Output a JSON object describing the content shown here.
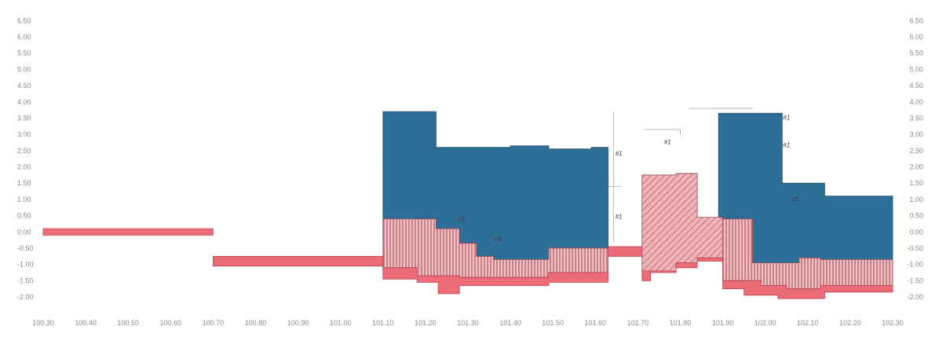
{
  "chart_data": {
    "type": "area",
    "title": "",
    "xlabel": "",
    "ylabel": "",
    "xlim": [
      100.3,
      102.3
    ],
    "ylim": [
      -2.25,
      6.5
    ],
    "grid": false,
    "legend": "none",
    "x_ticks": [
      "100.30",
      "100.40",
      "100.50",
      "100.60",
      "100.70",
      "100.80",
      "100.90",
      "101.00",
      "101.10",
      "101.20",
      "101.30",
      "101.40",
      "101.50",
      "101.60",
      "101.70",
      "101.80",
      "101.90",
      "102.00",
      "102.10",
      "102.20",
      "102.30"
    ],
    "y_ticks_left": [
      "6.50",
      "6.00",
      "5.50",
      "5.00",
      "4.50",
      "4.00",
      "3.50",
      "3.00",
      "2.50",
      "2.00",
      "1.50",
      "1.00",
      "0.50",
      "0.00",
      "-0.50",
      "-1.00",
      "-1.50",
      "-2.00"
    ],
    "y_ticks_right": [
      "6.50",
      "6.00",
      "5.50",
      "5.00",
      "4.50",
      "4.00",
      "3.50",
      "3.00",
      "2.50",
      "2.00",
      "1.50",
      "1.00",
      "0.50",
      "0.00",
      "-0.50",
      "-1.00",
      "-1.50",
      "-2.00"
    ],
    "series": [
      {
        "kind": "blue-fill",
        "polygons": [
          [
            [
              101.1,
              -0.25
            ],
            [
              101.1,
              3.7
            ],
            [
              101.225,
              3.7
            ],
            [
              101.225,
              2.6
            ],
            [
              101.4,
              2.6
            ],
            [
              101.4,
              2.65
            ],
            [
              101.49,
              2.65
            ],
            [
              101.49,
              2.55
            ],
            [
              101.59,
              2.55
            ],
            [
              101.59,
              2.6
            ],
            [
              101.63,
              2.6
            ],
            [
              101.63,
              -0.5
            ],
            [
              101.49,
              -0.5
            ],
            [
              101.49,
              -0.85
            ],
            [
              101.36,
              -0.85
            ],
            [
              101.36,
              -0.75
            ],
            [
              101.32,
              -0.75
            ],
            [
              101.32,
              -0.35
            ],
            [
              101.28,
              -0.35
            ],
            [
              101.28,
              0.1
            ],
            [
              101.225,
              0.1
            ],
            [
              101.225,
              0.4
            ],
            [
              101.18,
              0.4
            ],
            [
              101.18,
              -0.25
            ]
          ],
          [
            [
              101.89,
              3.65
            ],
            [
              102.04,
              3.65
            ],
            [
              102.04,
              1.5
            ],
            [
              102.14,
              1.5
            ],
            [
              102.14,
              1.1
            ],
            [
              102.3,
              1.1
            ],
            [
              102.3,
              -0.85
            ],
            [
              102.13,
              -0.85
            ],
            [
              102.13,
              -0.8
            ],
            [
              102.08,
              -0.8
            ],
            [
              102.08,
              -0.95
            ],
            [
              101.97,
              -0.95
            ],
            [
              101.97,
              0.4
            ],
            [
              101.9,
              0.4
            ],
            [
              101.9,
              0.0
            ],
            [
              101.89,
              0.0
            ]
          ]
        ]
      },
      {
        "kind": "vertical-hatch",
        "polygons": [
          [
            [
              101.1,
              0.4
            ],
            [
              101.225,
              0.4
            ],
            [
              101.225,
              0.1
            ],
            [
              101.28,
              0.1
            ],
            [
              101.28,
              -0.35
            ],
            [
              101.32,
              -0.35
            ],
            [
              101.32,
              -0.75
            ],
            [
              101.36,
              -0.75
            ],
            [
              101.36,
              -0.85
            ],
            [
              101.49,
              -0.85
            ],
            [
              101.49,
              -0.5
            ],
            [
              101.63,
              -0.5
            ],
            [
              101.63,
              -1.25
            ],
            [
              101.49,
              -1.25
            ],
            [
              101.49,
              -1.4
            ],
            [
              101.28,
              -1.4
            ],
            [
              101.28,
              -1.35
            ],
            [
              101.18,
              -1.35
            ],
            [
              101.18,
              -1.1
            ],
            [
              101.1,
              -1.1
            ]
          ],
          [
            [
              101.9,
              0.4
            ],
            [
              101.97,
              0.4
            ],
            [
              101.97,
              -0.95
            ],
            [
              102.08,
              -0.95
            ],
            [
              102.08,
              -0.8
            ],
            [
              102.13,
              -0.8
            ],
            [
              102.13,
              -0.85
            ],
            [
              102.3,
              -0.85
            ],
            [
              102.3,
              -1.65
            ],
            [
              102.13,
              -1.65
            ],
            [
              102.13,
              -1.75
            ],
            [
              102.05,
              -1.75
            ],
            [
              102.05,
              -1.65
            ],
            [
              101.99,
              -1.65
            ],
            [
              101.99,
              -1.5
            ],
            [
              101.9,
              -1.5
            ]
          ]
        ]
      },
      {
        "kind": "diagonal-hatch",
        "polygons": [
          [
            [
              101.71,
              1.75
            ],
            [
              101.79,
              1.75
            ],
            [
              101.79,
              1.8
            ],
            [
              101.84,
              1.8
            ],
            [
              101.84,
              0.45
            ],
            [
              101.9,
              0.45
            ],
            [
              101.9,
              -0.8
            ],
            [
              101.84,
              -0.8
            ],
            [
              101.84,
              -0.95
            ],
            [
              101.79,
              -0.95
            ],
            [
              101.79,
              -1.2
            ],
            [
              101.71,
              -1.2
            ]
          ]
        ]
      },
      {
        "kind": "red-strip",
        "polygons": [
          [
            [
              100.3,
              0.1
            ],
            [
              100.7,
              0.1
            ],
            [
              100.7,
              -0.1
            ],
            [
              100.3,
              -0.1
            ]
          ],
          [
            [
              100.7,
              -0.75
            ],
            [
              101.1,
              -0.75
            ],
            [
              101.1,
              -1.05
            ],
            [
              100.7,
              -1.05
            ]
          ],
          [
            [
              101.1,
              -1.1
            ],
            [
              101.18,
              -1.1
            ],
            [
              101.18,
              -1.35
            ],
            [
              101.28,
              -1.35
            ],
            [
              101.28,
              -1.4
            ],
            [
              101.49,
              -1.4
            ],
            [
              101.49,
              -1.25
            ],
            [
              101.63,
              -1.25
            ],
            [
              101.63,
              -1.55
            ],
            [
              101.49,
              -1.55
            ],
            [
              101.49,
              -1.65
            ],
            [
              101.28,
              -1.65
            ],
            [
              101.28,
              -1.9
            ],
            [
              101.23,
              -1.9
            ],
            [
              101.23,
              -1.55
            ],
            [
              101.18,
              -1.55
            ],
            [
              101.18,
              -1.45
            ],
            [
              101.1,
              -1.45
            ]
          ],
          [
            [
              101.63,
              -0.45
            ],
            [
              101.71,
              -0.45
            ],
            [
              101.71,
              -0.75
            ],
            [
              101.63,
              -0.75
            ]
          ],
          [
            [
              101.71,
              -1.2
            ],
            [
              101.79,
              -1.2
            ],
            [
              101.79,
              -0.95
            ],
            [
              101.84,
              -0.95
            ],
            [
              101.84,
              -0.8
            ],
            [
              101.9,
              -0.8
            ],
            [
              101.9,
              -0.9
            ],
            [
              101.84,
              -0.9
            ],
            [
              101.84,
              -1.1
            ],
            [
              101.79,
              -1.1
            ],
            [
              101.79,
              -1.25
            ],
            [
              101.73,
              -1.25
            ],
            [
              101.73,
              -1.5
            ],
            [
              101.71,
              -1.5
            ]
          ],
          [
            [
              101.9,
              -0.8
            ],
            [
              101.9,
              -1.5
            ],
            [
              101.99,
              -1.5
            ],
            [
              101.99,
              -1.65
            ],
            [
              102.05,
              -1.65
            ],
            [
              102.05,
              -1.75
            ],
            [
              102.13,
              -1.75
            ],
            [
              102.13,
              -1.65
            ],
            [
              102.3,
              -1.65
            ],
            [
              102.3,
              -1.85
            ],
            [
              102.14,
              -1.85
            ],
            [
              102.14,
              -2.05
            ],
            [
              102.03,
              -2.05
            ],
            [
              102.03,
              -1.95
            ],
            [
              101.95,
              -1.95
            ],
            [
              101.95,
              -1.75
            ],
            [
              101.9,
              -1.75
            ],
            [
              101.9,
              -0.8
            ]
          ]
        ]
      }
    ],
    "annotations": [
      {
        "text": "#1",
        "x": 101.655,
        "y": 2.35
      },
      {
        "text": "#1",
        "x": 101.655,
        "y": 0.4
      },
      {
        "text": "#1",
        "x": 101.77,
        "y": 2.7
      },
      {
        "text": "#1",
        "x": 102.05,
        "y": 3.45
      },
      {
        "text": "#1",
        "x": 102.05,
        "y": 2.6
      },
      {
        "text": "c5",
        "x": 101.285,
        "y": 0.35
      },
      {
        "text": "c3",
        "x": 101.37,
        "y": -0.3
      },
      {
        "text": "c5",
        "x": 102.07,
        "y": 0.95
      }
    ]
  }
}
